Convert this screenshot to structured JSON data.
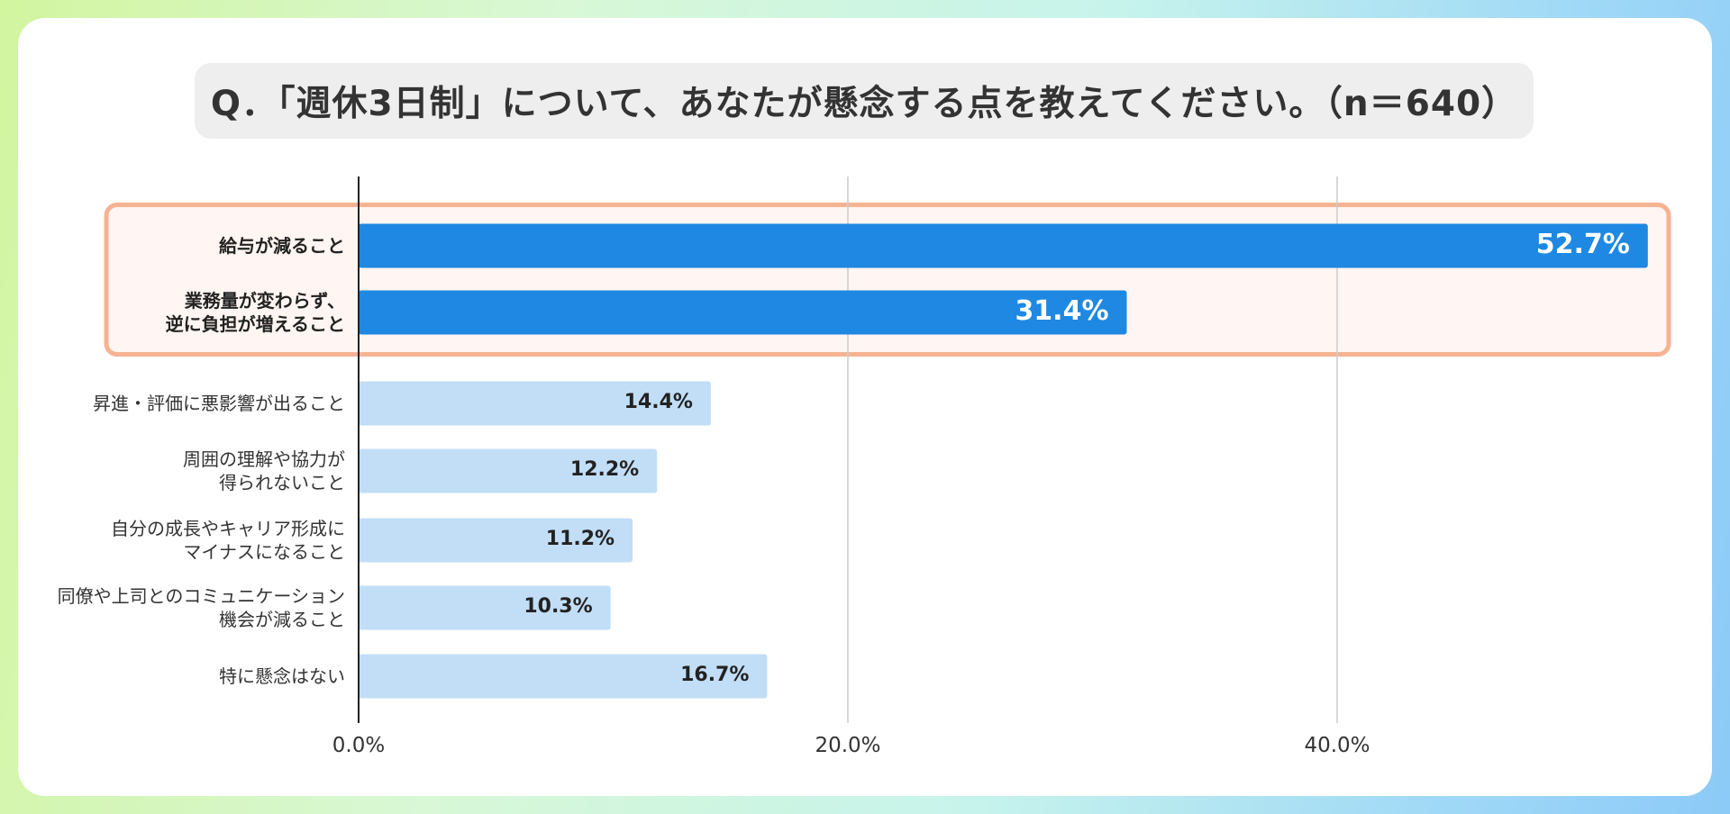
{
  "title": "Q．「週休3日制」について、あなたが懸念する点を教えてください。（n＝640）",
  "colors": {
    "highlight_bar": "#1e88e2",
    "normal_bar": "#c2def7",
    "highlight_border": "#f5b393",
    "highlight_fill": "#fff5f2"
  },
  "chart_data": {
    "type": "bar",
    "orientation": "horizontal",
    "categories": [
      "給与が減ること",
      "業務量が変わらず、\n逆に負担が増えること",
      "昇進・評価に悪影響が出ること",
      "周囲の理解や協力が\n得られないこと",
      "自分の成長やキャリア形成に\nマイナスになること",
      "同僚や上司とのコミュニケーション\n機会が減ること",
      "特に懸念はない"
    ],
    "values": [
      52.7,
      31.4,
      14.4,
      12.2,
      11.2,
      10.3,
      16.7
    ],
    "value_labels": [
      "52.7%",
      "31.4%",
      "14.4%",
      "12.2%",
      "11.2%",
      "10.3%",
      "16.7%"
    ],
    "highlighted": [
      true,
      true,
      false,
      false,
      false,
      false,
      false
    ],
    "xlim": [
      0,
      53
    ],
    "x_ticks": [
      0,
      20,
      40
    ],
    "x_tick_labels": [
      "0.0%",
      "20.0%",
      "40.0%"
    ],
    "grid": true,
    "legend": "none"
  }
}
